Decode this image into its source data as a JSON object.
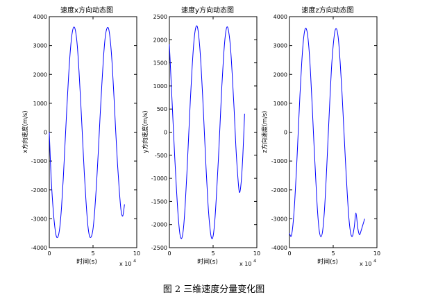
{
  "caption": "图 2  三维速度分量变化图",
  "colors": {
    "line": "#0000ff",
    "axis": "#000000",
    "background": "#ffffff"
  },
  "chart_data": [
    {
      "type": "line",
      "title": "速度x方向动态图",
      "xlabel": "时间(s)",
      "ylabel": "x方向速度(m/s)",
      "x_exponent_label": "x 10",
      "x_exponent_power": "4",
      "xlim": [
        0,
        100000
      ],
      "ylim": [
        -4000,
        4000
      ],
      "xticks": [
        0,
        50000,
        100000
      ],
      "xtick_labels": [
        "0",
        "5",
        "10"
      ],
      "yticks": [
        -4000,
        -3000,
        -2000,
        -1000,
        0,
        1000,
        2000,
        3000,
        4000
      ],
      "ytick_labels": [
        "-4000",
        "-3000",
        "-2000",
        "-1000",
        "0",
        "1000",
        "2000",
        "3000",
        "4000"
      ],
      "grid": false,
      "series": [
        {
          "x": [
            0,
            2000,
            4000,
            6000,
            8000,
            10000,
            12000,
            14000,
            16000,
            18000,
            20000,
            22000,
            24000,
            26000,
            28000,
            30000,
            32000,
            34000,
            36000,
            38000,
            40000,
            42000,
            44000,
            46000,
            48000,
            50000,
            52000,
            54000,
            56000,
            58000,
            60000,
            62000,
            64000,
            66000,
            68000,
            70000,
            72000,
            74000,
            76000,
            78000,
            80000,
            82000,
            84000,
            86000
          ],
          "y": [
            0,
            -1500,
            -2500,
            -3200,
            -3600,
            -3620,
            -3300,
            -2600,
            -1600,
            -400,
            800,
            1900,
            2800,
            3400,
            3640,
            3500,
            3000,
            2100,
            1000,
            -200,
            -1400,
            -2400,
            -3200,
            -3600,
            -3620,
            -3350,
            -2700,
            -1800,
            -700,
            500,
            1600,
            2600,
            3300,
            3600,
            3560,
            3100,
            2300,
            1200,
            0,
            -1100,
            -2000,
            -2700,
            -2900,
            -2500
          ]
        }
      ]
    },
    {
      "type": "line",
      "title": "速度y方向动态图",
      "xlabel": "时间(s)",
      "ylabel": "y方向速度(m/s)",
      "x_exponent_label": "x 10",
      "x_exponent_power": "4",
      "xlim": [
        0,
        100000
      ],
      "ylim": [
        -2500,
        2500
      ],
      "xticks": [
        0,
        50000,
        100000
      ],
      "xtick_labels": [
        "0",
        "5",
        "10"
      ],
      "yticks": [
        -2500,
        -2000,
        -1500,
        -1000,
        -500,
        0,
        500,
        1000,
        1500,
        2000,
        2500
      ],
      "ytick_labels": [
        "-2500",
        "-2000",
        "-1500",
        "-1000",
        "-500",
        "0",
        "500",
        "1000",
        "1500",
        "2000",
        "2500"
      ],
      "grid": false,
      "series": [
        {
          "x": [
            0,
            2000,
            4000,
            6000,
            8000,
            10000,
            12000,
            14000,
            16000,
            18000,
            20000,
            22000,
            24000,
            26000,
            28000,
            30000,
            32000,
            34000,
            36000,
            38000,
            40000,
            42000,
            44000,
            46000,
            48000,
            50000,
            52000,
            54000,
            56000,
            58000,
            60000,
            62000,
            64000,
            66000,
            68000,
            70000,
            72000,
            74000,
            76000,
            78000,
            80000,
            82000,
            84000,
            86000
          ],
          "y": [
            1900,
            1100,
            300,
            -500,
            -1200,
            -1800,
            -2200,
            -2300,
            -2100,
            -1600,
            -900,
            -100,
            700,
            1400,
            1950,
            2250,
            2280,
            2000,
            1500,
            800,
            0,
            -800,
            -1500,
            -2000,
            -2280,
            -2250,
            -1900,
            -1300,
            -600,
            200,
            1000,
            1650,
            2100,
            2280,
            2150,
            1800,
            1200,
            500,
            -300,
            -900,
            -1300,
            -1100,
            -500,
            400
          ]
        }
      ]
    },
    {
      "type": "line",
      "title": "速度z方向动态图",
      "xlabel": "时间(s)",
      "ylabel": "z方向速度(m/s)",
      "x_exponent_label": "x 10",
      "x_exponent_power": "4",
      "xlim": [
        0,
        100000
      ],
      "ylim": [
        -4000,
        4000
      ],
      "xticks": [
        0,
        50000,
        100000
      ],
      "xtick_labels": [
        "0",
        "5",
        "10"
      ],
      "yticks": [
        -4000,
        -3000,
        -2000,
        -1000,
        0,
        1000,
        2000,
        3000,
        4000
      ],
      "ytick_labels": [
        "-4000",
        "-3000",
        "-2000",
        "-1000",
        "0",
        "1000",
        "2000",
        "3000",
        "4000"
      ],
      "grid": false,
      "series": [
        {
          "x": [
            0,
            2000,
            4000,
            6000,
            8000,
            10000,
            12000,
            14000,
            16000,
            18000,
            20000,
            22000,
            24000,
            26000,
            28000,
            30000,
            32000,
            34000,
            36000,
            38000,
            40000,
            42000,
            44000,
            46000,
            48000,
            50000,
            52000,
            54000,
            56000,
            58000,
            60000,
            62000,
            64000,
            66000,
            68000,
            70000,
            72000,
            74000,
            76000,
            78000,
            80000,
            82000,
            84000,
            86000
          ],
          "y": [
            -3500,
            -3600,
            -3200,
            -2400,
            -1300,
            0,
            1300,
            2400,
            3200,
            3580,
            3500,
            3000,
            2100,
            900,
            -400,
            -1600,
            -2700,
            -3400,
            -3620,
            -3400,
            -2700,
            -1600,
            -300,
            1000,
            2200,
            3000,
            3500,
            3560,
            3200,
            2400,
            1400,
            200,
            -1000,
            -2100,
            -3000,
            -3500,
            -3600,
            -3300,
            -2800,
            -3300,
            -3550,
            -3400,
            -3200,
            -3000
          ]
        }
      ]
    }
  ]
}
